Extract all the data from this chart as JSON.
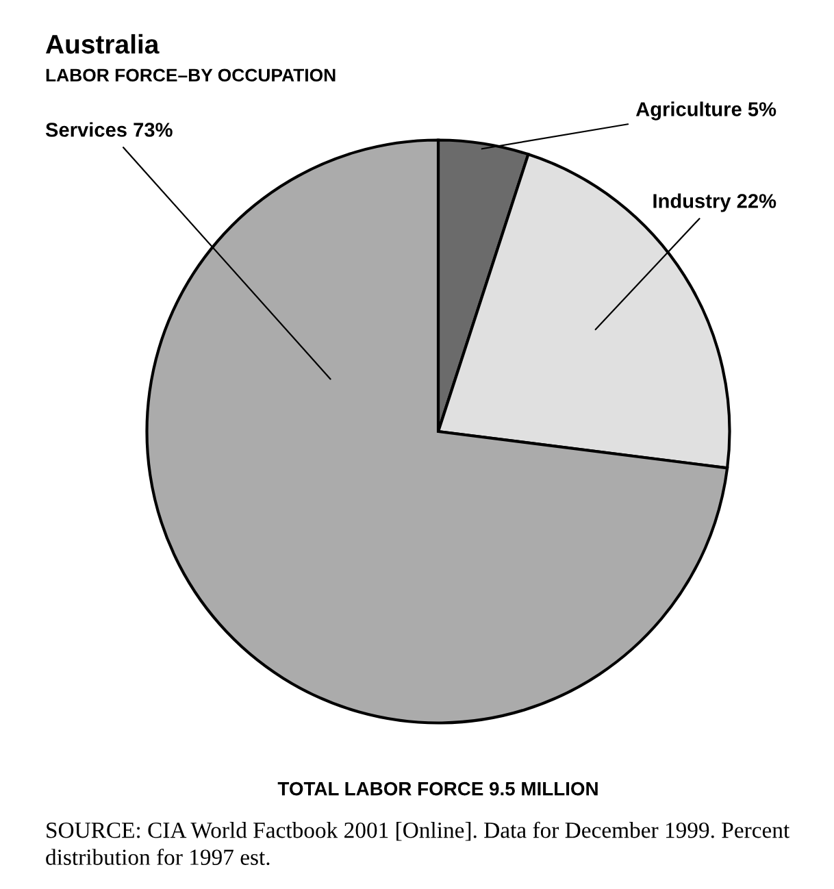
{
  "chart_data": {
    "type": "pie",
    "title": "Australia",
    "subtitle": "LABOR FORCE–BY OCCUPATION",
    "categories": [
      "Agriculture",
      "Industry",
      "Services"
    ],
    "values": [
      5,
      22,
      73
    ],
    "colors": [
      "#6b6b6b",
      "#e0e0e0",
      "#ababab"
    ],
    "value_labels": [
      "5%",
      "22%",
      "73%"
    ],
    "annotations": [
      "TOTAL LABOR FORCE 9.5 MILLION",
      "SOURCE: CIA World Factbook 2001 [Online]. Data for December 1999. Percent distribution for 1997 est."
    ]
  }
}
